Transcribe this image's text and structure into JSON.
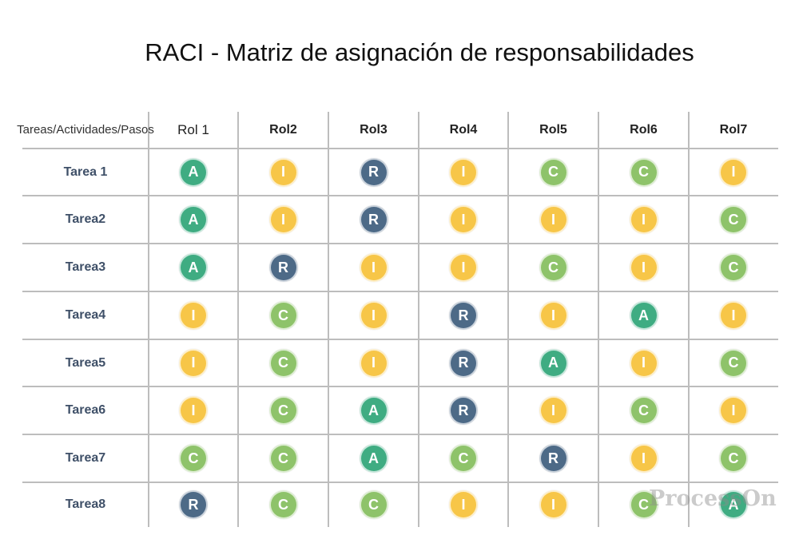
{
  "title": "RACI - Matriz de asignación de responsabilidades",
  "corner_header": "Tareas/Actividades/Pasos",
  "roles": [
    "Rol 1",
    "Rol2",
    "Rol3",
    "Rol4",
    "Rol5",
    "Rol6",
    "Rol7"
  ],
  "tasks": [
    {
      "name": "Tarea 1",
      "values": [
        "A",
        "I",
        "R",
        "I",
        "C",
        "C",
        "I"
      ]
    },
    {
      "name": "Tarea2",
      "values": [
        "A",
        "I",
        "R",
        "I",
        "I",
        "I",
        "C"
      ]
    },
    {
      "name": "Tarea3",
      "values": [
        "A",
        "R",
        "I",
        "I",
        "C",
        "I",
        "C"
      ]
    },
    {
      "name": "Tarea4",
      "values": [
        "I",
        "C",
        "I",
        "R",
        "I",
        "A",
        "I"
      ]
    },
    {
      "name": "Tarea5",
      "values": [
        "I",
        "C",
        "I",
        "R",
        "A",
        "I",
        "C"
      ]
    },
    {
      "name": "Tarea6",
      "values": [
        "I",
        "C",
        "A",
        "R",
        "I",
        "C",
        "I"
      ]
    },
    {
      "name": "Tarea7",
      "values": [
        "C",
        "C",
        "A",
        "C",
        "R",
        "I",
        "C"
      ]
    },
    {
      "name": "Tarea8",
      "values": [
        "R",
        "C",
        "C",
        "I",
        "I",
        "C",
        "A"
      ]
    }
  ],
  "badge_colors": {
    "R": "#4d6a87",
    "A": "#3fac82",
    "C": "#8ec36a",
    "I": "#f7c648"
  },
  "watermark": "ProcessOn"
}
